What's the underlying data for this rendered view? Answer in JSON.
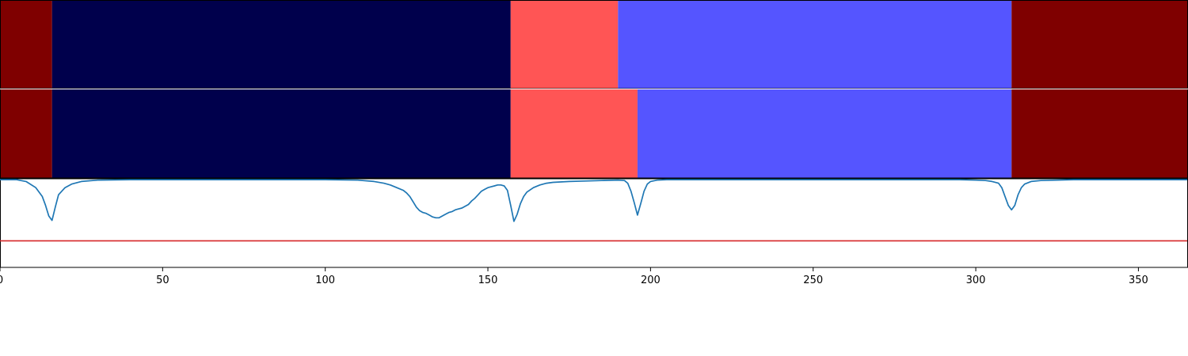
{
  "chart_data": [
    {
      "type": "heatmap",
      "panel": "segmentation-band-top",
      "segments": [
        {
          "start": 0,
          "end": 16,
          "color": "#7f0000"
        },
        {
          "start": 16,
          "end": 157,
          "color": "#00004c"
        },
        {
          "start": 157,
          "end": 190,
          "color": "#ff5555"
        },
        {
          "start": 190,
          "end": 311,
          "color": "#5555ff"
        },
        {
          "start": 311,
          "end": 365,
          "color": "#7f0000"
        }
      ]
    },
    {
      "type": "heatmap",
      "panel": "segmentation-band-bottom",
      "segments": [
        {
          "start": 0,
          "end": 16,
          "color": "#7f0000"
        },
        {
          "start": 16,
          "end": 157,
          "color": "#00004c"
        },
        {
          "start": 157,
          "end": 196,
          "color": "#ff5555"
        },
        {
          "start": 196,
          "end": 311,
          "color": "#5555ff"
        },
        {
          "start": 311,
          "end": 365,
          "color": "#7f0000"
        }
      ]
    },
    {
      "type": "line",
      "panel": "boundary-score",
      "xlim": [
        0,
        365
      ],
      "ylim": [
        0,
        1
      ],
      "xticks": [
        0,
        50,
        100,
        150,
        200,
        250,
        300,
        350
      ],
      "threshold": {
        "value": 0.3,
        "color": "#d62728"
      },
      "series": [
        {
          "color": "#1f77b4",
          "x": [
            0,
            5,
            8,
            11,
            13,
            14,
            15,
            16,
            17,
            18,
            20,
            22,
            25,
            30,
            40,
            60,
            80,
            100,
            110,
            115,
            118,
            120,
            122,
            124,
            125,
            126,
            127,
            128,
            129,
            130,
            131,
            132,
            133,
            134,
            135,
            136,
            137,
            138,
            139,
            140,
            141,
            142,
            143,
            144,
            145,
            146,
            147,
            148,
            149,
            150,
            151,
            152,
            153,
            154,
            155,
            156,
            157,
            158,
            159,
            160,
            161,
            162,
            164,
            166,
            168,
            170,
            175,
            180,
            185,
            190,
            192,
            193,
            194,
            195,
            196,
            197,
            198,
            199,
            200,
            202,
            205,
            210,
            220,
            240,
            260,
            280,
            295,
            300,
            303,
            305,
            307,
            308,
            309,
            310,
            311,
            312,
            313,
            314,
            315,
            317,
            320,
            325,
            330,
            340,
            350,
            365
          ],
          "y": [
            0.99,
            0.99,
            0.97,
            0.9,
            0.8,
            0.7,
            0.58,
            0.53,
            0.68,
            0.82,
            0.9,
            0.94,
            0.97,
            0.985,
            0.99,
            0.99,
            0.99,
            0.99,
            0.985,
            0.97,
            0.95,
            0.93,
            0.9,
            0.87,
            0.84,
            0.8,
            0.74,
            0.68,
            0.64,
            0.62,
            0.61,
            0.59,
            0.57,
            0.56,
            0.56,
            0.58,
            0.6,
            0.62,
            0.63,
            0.65,
            0.66,
            0.67,
            0.69,
            0.71,
            0.75,
            0.78,
            0.82,
            0.86,
            0.88,
            0.9,
            0.91,
            0.92,
            0.93,
            0.93,
            0.92,
            0.87,
            0.7,
            0.52,
            0.6,
            0.72,
            0.8,
            0.85,
            0.9,
            0.93,
            0.95,
            0.96,
            0.97,
            0.975,
            0.98,
            0.985,
            0.98,
            0.95,
            0.86,
            0.73,
            0.59,
            0.72,
            0.86,
            0.94,
            0.97,
            0.985,
            0.99,
            0.99,
            0.99,
            0.99,
            0.99,
            0.99,
            0.99,
            0.985,
            0.98,
            0.97,
            0.95,
            0.9,
            0.8,
            0.7,
            0.65,
            0.7,
            0.82,
            0.9,
            0.94,
            0.97,
            0.98,
            0.985,
            0.99,
            0.99,
            0.99,
            0.99
          ]
        }
      ]
    }
  ]
}
